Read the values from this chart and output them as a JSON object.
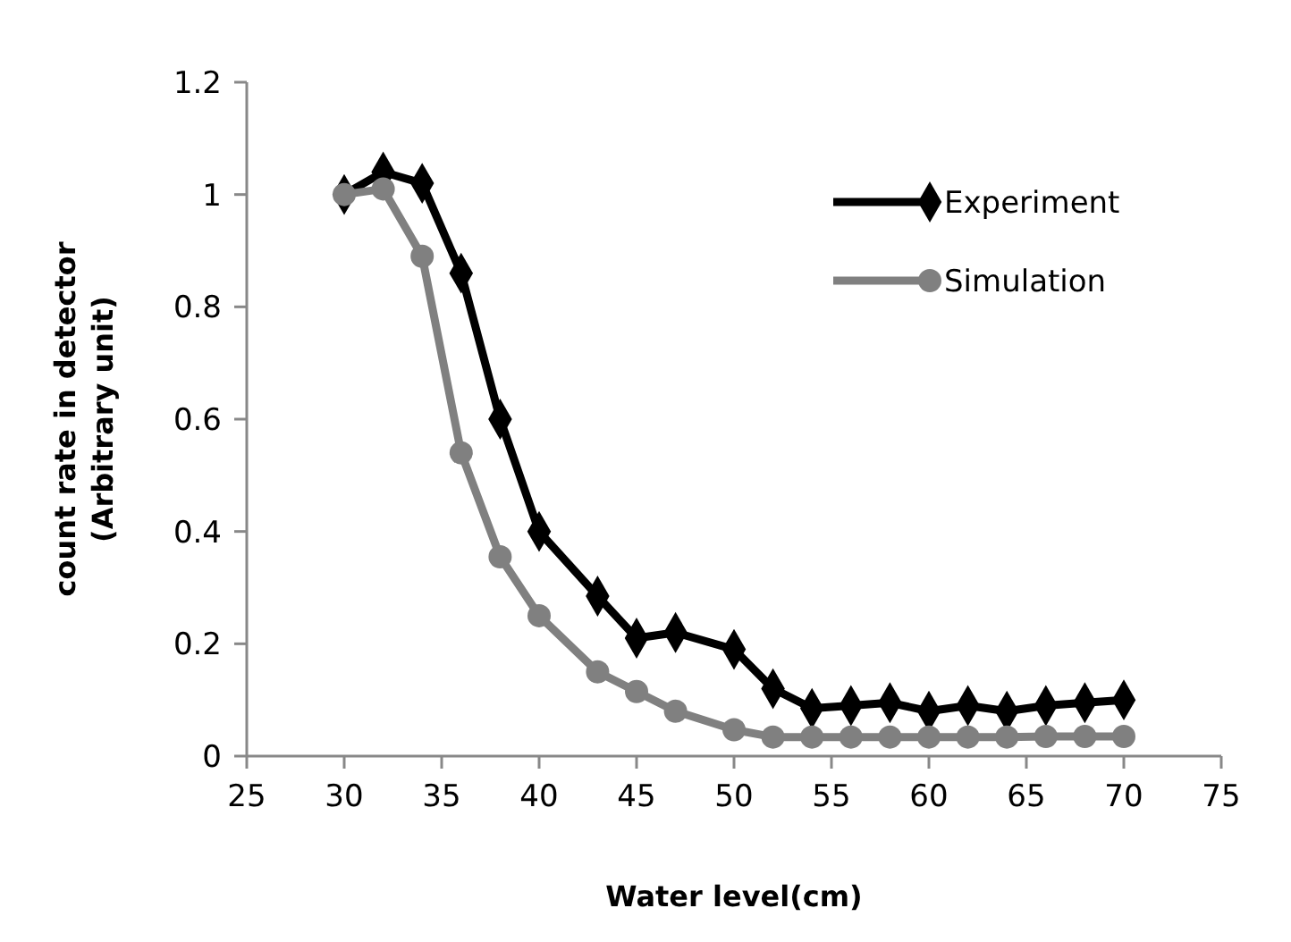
{
  "chart_data": {
    "type": "line",
    "xlabel": "Water level(cm)",
    "ylabel": "count rate in detector\n(Arbitrary unit)",
    "xlim": [
      25,
      75
    ],
    "xticks": [
      25,
      30,
      35,
      40,
      45,
      50,
      55,
      60,
      65,
      70,
      75
    ],
    "ylim": [
      0,
      1.2
    ],
    "yticks": [
      0,
      0.2,
      0.4,
      0.6,
      0.8,
      1,
      1.2
    ],
    "grid": false,
    "legend": "top right",
    "series": [
      {
        "name": "Experiment",
        "color": "#000000",
        "marker": "diamond",
        "x": [
          30,
          32,
          34,
          36,
          38,
          40,
          43,
          45,
          47,
          50,
          52,
          54,
          56,
          58,
          60,
          62,
          64,
          66,
          68,
          70
        ],
        "values": [
          1.0,
          1.04,
          1.02,
          0.86,
          0.6,
          0.4,
          0.285,
          0.21,
          0.22,
          0.19,
          0.12,
          0.085,
          0.09,
          0.095,
          0.08,
          0.09,
          0.08,
          0.09,
          0.095,
          0.1
        ]
      },
      {
        "name": "Simulation",
        "color": "#808080",
        "marker": "circle",
        "x": [
          30,
          32,
          34,
          36,
          38,
          40,
          43,
          45,
          47,
          50,
          52,
          54,
          56,
          58,
          60,
          62,
          64,
          66,
          68,
          70
        ],
        "values": [
          1.0,
          1.01,
          0.89,
          0.54,
          0.355,
          0.25,
          0.15,
          0.115,
          0.08,
          0.047,
          0.034,
          0.034,
          0.034,
          0.034,
          0.034,
          0.034,
          0.034,
          0.035,
          0.035,
          0.035
        ]
      }
    ]
  }
}
